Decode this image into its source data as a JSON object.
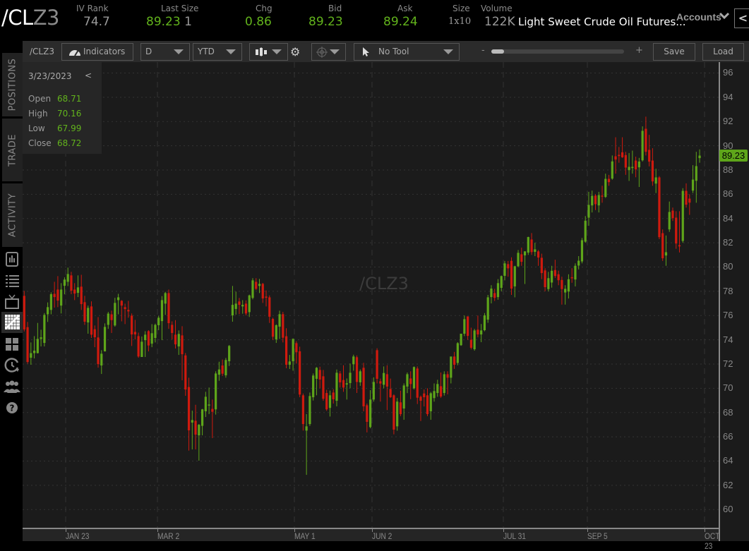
{
  "header": {
    "symbol_prefix": "/CL",
    "symbol_suffix": "Z3",
    "iv_rank": {
      "label": "IV Rank",
      "value": "74.7"
    },
    "last_size": {
      "label": "Last Size",
      "last": "89.23",
      "size": "1"
    },
    "chg": {
      "label": "Chg",
      "value": "0.86"
    },
    "bid": {
      "label": "Bid",
      "value": "89.23"
    },
    "ask": {
      "label": "Ask",
      "value": "89.24"
    },
    "size": {
      "label": "Size",
      "value": "1x10"
    },
    "volume": {
      "label": "Volume",
      "value": "122K"
    },
    "title": "Light Sweet Crude Oil Futures...",
    "accounts": "Accounts",
    "collapse": "<"
  },
  "toolbar": {
    "symbol": "/CLZ3",
    "indicators": "Indicators",
    "aggregation": "D",
    "timeframe": "YTD",
    "drawing_tool": "No Tool",
    "zoom_minus": "-",
    "zoom_plus": "+",
    "zoom_level": 0.1,
    "save": "Save",
    "load": "Load"
  },
  "side_tabs": [
    "POSITIONS",
    "TRADE",
    "ACTIVITY"
  ],
  "side_icons": [
    "chart-book-icon",
    "list-icon",
    "tv-icon",
    "charts-icon",
    "grid-icon",
    "clock-refresh-icon",
    "people-icon",
    "help-icon"
  ],
  "info": {
    "date": "3/23/2023",
    "back": "<",
    "rows": [
      {
        "label": "Open",
        "value": "68.71"
      },
      {
        "label": "High",
        "value": "70.16"
      },
      {
        "label": "Low",
        "value": "67.99"
      },
      {
        "label": "Close",
        "value": "68.72"
      }
    ]
  },
  "watermark": "/CLZ3",
  "last_price_label": "89.23",
  "colors": {
    "up": "#5ea51a",
    "down": "#cf1a0e",
    "background": "#1b1b1b"
  },
  "chart_data": {
    "type": "candlestick",
    "ylim": [
      58.5,
      96.9
    ],
    "yticks": [
      "96",
      "94",
      "92",
      "90",
      "88",
      "86",
      "84",
      "82",
      "80",
      "78",
      "76",
      "74",
      "72",
      "70",
      "68",
      "66",
      "64",
      "62",
      "60"
    ],
    "xticks": [
      "JAN 23",
      "MAR 2",
      "MAY 1",
      "JUN 2",
      "JUL 31",
      "SEP 5",
      "OCT 23"
    ],
    "grid": true,
    "ohlc": [
      [
        77.62,
        78.03,
        74.69,
        74.85
      ],
      [
        75.04,
        75.47,
        72.03,
        72.17
      ],
      [
        72.52,
        73.78,
        71.94,
        72.9
      ],
      [
        72.9,
        74.3,
        72.46,
        73.1
      ],
      [
        72.9,
        75.39,
        72.87,
        74.07
      ],
      [
        74.07,
        74.83,
        73.45,
        74.2
      ],
      [
        73.74,
        76.2,
        73.45,
        76.05
      ],
      [
        76.1,
        77.08,
        75.47,
        76.69
      ],
      [
        76.46,
        77.91,
        76.1,
        77.76
      ],
      [
        77.79,
        78.78,
        76.65,
        77.52
      ],
      [
        78.14,
        79.25,
        76.69,
        77.23
      ],
      [
        76.82,
        78.67,
        76.17,
        78.14
      ],
      [
        78.45,
        79.15,
        77.75,
        78.96
      ],
      [
        78.78,
        79.95,
        78.43,
        79.42
      ],
      [
        79.31,
        79.6,
        77.76,
        78.05
      ],
      [
        78.14,
        78.67,
        77.27,
        77.81
      ],
      [
        77.87,
        79.31,
        77.52,
        78.32
      ],
      [
        78.38,
        79.36,
        76.46,
        76.94
      ],
      [
        77.1,
        77.62,
        75.23,
        75.49
      ],
      [
        75.43,
        76.82,
        74.5,
        76.63
      ],
      [
        76.75,
        77.17,
        74.15,
        74.42
      ],
      [
        74.87,
        75.18,
        73.39,
        74.21
      ],
      [
        74.19,
        75.87,
        71.7,
        71.99
      ],
      [
        71.88,
        73.14,
        71.18,
        72.85
      ],
      [
        73.04,
        75.35,
        73.04,
        75.06
      ],
      [
        75.23,
        76.3,
        74.9,
        76.16
      ],
      [
        76.1,
        76.4,
        74.56,
        75.62
      ],
      [
        75.18,
        77.46,
        75.08,
        77.04
      ],
      [
        77.27,
        77.79,
        76.1,
        77.5
      ],
      [
        77.21,
        77.27,
        75.52,
        76.82
      ],
      [
        76.69,
        76.98,
        75.29,
        76.53
      ],
      [
        76.46,
        77.21,
        75.82,
        76.34
      ],
      [
        75.99,
        76.17,
        73.49,
        74.44
      ],
      [
        74.65,
        75.64,
        74.03,
        74.44
      ],
      [
        74.3,
        74.59,
        72.52,
        72.62
      ],
      [
        72.58,
        74.27,
        72.58,
        73.84
      ],
      [
        73.97,
        74.71,
        72.58,
        74.42
      ],
      [
        74.71,
        74.79,
        73.04,
        73.53
      ],
      [
        73.68,
        75.29,
        73.39,
        74.54
      ],
      [
        74.15,
        75.33,
        73.78,
        75.23
      ],
      [
        75.2,
        75.97,
        74.79,
        75.82
      ],
      [
        75.54,
        77.6,
        73.97,
        77.27
      ],
      [
        76.98,
        77.95,
        76.05,
        77.85
      ],
      [
        77.85,
        78.14,
        74.9,
        75.37
      ],
      [
        75.23,
        75.52,
        74.03,
        74.56
      ],
      [
        74.42,
        75.62,
        73.28,
        73.62
      ],
      [
        73.45,
        74.77,
        72.75,
        74.48
      ],
      [
        74.36,
        75.12,
        70.66,
        72.81
      ],
      [
        72.71,
        72.91,
        69.38,
        69.9
      ],
      [
        70.1,
        70.87,
        64.86,
        66.53
      ],
      [
        67.17,
        68.16,
        64.96,
        67.38
      ],
      [
        67.32,
        68.64,
        64.96,
        66.18
      ],
      [
        66.12,
        67.05,
        64.03,
        66.99
      ],
      [
        66.9,
        68.3,
        66.12,
        68.26
      ],
      [
        68.1,
        69.71,
        67.63,
        69.3
      ],
      [
        68.62,
        70.06,
        67.87,
        68.66
      ],
      [
        68.3,
        69.07,
        65.89,
        68.06
      ],
      [
        68.26,
        71.4,
        67.83,
        71.22
      ],
      [
        71.12,
        72.19,
        70.62,
        71.55
      ],
      [
        71.88,
        72.37,
        71.01,
        71.2
      ],
      [
        71.07,
        72.5,
        70.87,
        72.33
      ],
      [
        72.23,
        73.57,
        71.84,
        73.49
      ],
      [
        76.01,
        78.44,
        75.49,
        76.88
      ],
      [
        76.54,
        77.97,
        76.07,
        76.98
      ],
      [
        77.16,
        77.45,
        76.11,
        76.88
      ],
      [
        76.75,
        77.27,
        76.15,
        76.88
      ],
      [
        76.98,
        77.25,
        76.01,
        76.17
      ],
      [
        76.28,
        77.72,
        75.88,
        77.66
      ],
      [
        77.45,
        79.08,
        77.33,
        78.9
      ],
      [
        78.78,
        79.08,
        78.1,
        78.2
      ],
      [
        78.44,
        79.02,
        77.85,
        78.61
      ],
      [
        78.61,
        78.69,
        77.04,
        77.41
      ],
      [
        77.56,
        78.07,
        76.75,
        77.47
      ],
      [
        77.5,
        77.66,
        75.39,
        75.9
      ],
      [
        75.72,
        75.82,
        73.98,
        74.25
      ],
      [
        74.03,
        75.27,
        73.74,
        75.2
      ],
      [
        75.08,
        76.4,
        74.07,
        76.11
      ],
      [
        76.11,
        76.3,
        73.78,
        74.17
      ],
      [
        74.29,
        74.95,
        71.65,
        71.94
      ],
      [
        71.94,
        72.75,
        71.59,
        72.21
      ],
      [
        72.23,
        74.11,
        71.45,
        74.07
      ],
      [
        73.72,
        73.88,
        72.04,
        72.97
      ],
      [
        73.05,
        73.43,
        69.26,
        69.48
      ],
      [
        69.42,
        69.57,
        66.51,
        67.05
      ],
      [
        66.51,
        67.87,
        62.86,
        66.86
      ],
      [
        67.05,
        69.65,
        66.9,
        69.36
      ],
      [
        69.26,
        71.22,
        68.99,
        71.05
      ],
      [
        70.78,
        71.75,
        69.42,
        71.69
      ],
      [
        71.51,
        71.78,
        70.0,
        70.72
      ],
      [
        70.99,
        71.51,
        68.97,
        69.13
      ],
      [
        69.61,
        69.87,
        68.14,
        68.26
      ],
      [
        68.38,
        69.81,
        67.67,
        69.42
      ],
      [
        69.65,
        69.92,
        68.74,
        69.09
      ],
      [
        68.97,
        71.55,
        68.51,
        71.28
      ],
      [
        71.22,
        71.42,
        70.06,
        70.49
      ],
      [
        70.68,
        71.9,
        69.71,
        70.06
      ],
      [
        70.31,
        70.81,
        69.07,
        70.41
      ],
      [
        70.43,
        72.04,
        70.0,
        71.28
      ],
      [
        71.98,
        72.77,
        71.45,
        72.62
      ],
      [
        72.56,
        72.71,
        69.61,
        70.52
      ],
      [
        70.49,
        71.55,
        70.2,
        71.4
      ],
      [
        71.69,
        72.1,
        68.1,
        68.51
      ],
      [
        68.6,
        68.74,
        66.36,
        67.23
      ],
      [
        66.8,
        69.85,
        66.7,
        69.07
      ],
      [
        69.07,
        70.9,
        68.9,
        70.52
      ],
      [
        73.14,
        73.3,
        70.4,
        70.78
      ],
      [
        70.58,
        70.8,
        68.9,
        70.39
      ],
      [
        70.29,
        71.8,
        70.0,
        71.26
      ],
      [
        71.16,
        71.9,
        68.2,
        70.14
      ],
      [
        69.94,
        70.8,
        69.2,
        69.26
      ],
      [
        69.42,
        69.5,
        66.2,
        66.59
      ],
      [
        66.86,
        69.2,
        66.5,
        68.9
      ],
      [
        68.84,
        69.8,
        67.7,
        67.87
      ],
      [
        68.33,
        70.4,
        67.4,
        70.23
      ],
      [
        70.14,
        71.3,
        69.6,
        71.16
      ],
      [
        70.81,
        71.4,
        69.1,
        70.35
      ],
      [
        70.0,
        71.8,
        69.9,
        71.75
      ],
      [
        71.63,
        71.8,
        68.7,
        69.22
      ],
      [
        69.3,
        69.4,
        67.3,
        68.97
      ],
      [
        69.57,
        69.9,
        68.5,
        69.26
      ],
      [
        69.42,
        70.0,
        67.7,
        67.87
      ],
      [
        68.1,
        69.7,
        67.4,
        69.59
      ],
      [
        69.19,
        70.4,
        68.9,
        69.77
      ],
      [
        69.61,
        70.7,
        69.3,
        70.35
      ],
      [
        70.17,
        71.3,
        69.2,
        69.32
      ],
      [
        69.61,
        71.4,
        69.4,
        71.16
      ],
      [
        71.16,
        71.4,
        69.5,
        70.87
      ],
      [
        70.87,
        72.6,
        70.4,
        72.62
      ],
      [
        72.62,
        73.0,
        71.6,
        71.94
      ],
      [
        72.09,
        73.8,
        71.9,
        73.72
      ],
      [
        73.55,
        74.5,
        73.5,
        74.5
      ],
      [
        74.5,
        76.0,
        74.3,
        75.7
      ],
      [
        75.93,
        75.9,
        74.0,
        74.32
      ],
      [
        74.0,
        75.0,
        73.2,
        73.34
      ],
      [
        73.22,
        74.9,
        73.1,
        74.77
      ],
      [
        74.83,
        76.0,
        74.2,
        74.44
      ],
      [
        74.44,
        75.3,
        73.8,
        74.77
      ],
      [
        74.79,
        76.2,
        74.7,
        76.01
      ],
      [
        75.66,
        77.7,
        75.4,
        77.5
      ],
      [
        77.52,
        78.5,
        77.0,
        78.22
      ],
      [
        77.85,
        78.2,
        77.2,
        77.46
      ],
      [
        77.52,
        79.0,
        77.3,
        78.67
      ],
      [
        78.28,
        79.3,
        78.0,
        79.25
      ],
      [
        79.27,
        80.5,
        78.9,
        80.3
      ],
      [
        80.24,
        80.5,
        79.2,
        79.89
      ],
      [
        80.51,
        80.8,
        77.7,
        78.22
      ],
      [
        78.4,
        80.1,
        77.5,
        80.06
      ],
      [
        80.06,
        81.4,
        80.0,
        81.17
      ],
      [
        81.05,
        81.6,
        80.1,
        80.43
      ],
      [
        80.96,
        81.3,
        78.6,
        81.29
      ],
      [
        81.19,
        82.5,
        81.0,
        82.47
      ],
      [
        82.27,
        82.8,
        81.0,
        81.23
      ],
      [
        81.25,
        82.0,
        80.9,
        81.46
      ],
      [
        81.29,
        81.4,
        80.1,
        80.78
      ],
      [
        80.76,
        81.1,
        79.0,
        79.5
      ],
      [
        79.72,
        79.9,
        78.0,
        78.34
      ],
      [
        78.18,
        79.6,
        78.0,
        79.08
      ],
      [
        78.72,
        80.1,
        78.3,
        79.69
      ],
      [
        79.75,
        80.6,
        79.1,
        79.26
      ],
      [
        79.4,
        79.7,
        78.5,
        78.91
      ],
      [
        78.93,
        79.2,
        76.9,
        78.18
      ],
      [
        77.9,
        78.5,
        76.9,
        78.2
      ],
      [
        77.98,
        79.4,
        77.4,
        78.99
      ],
      [
        79.16,
        79.9,
        78.7,
        79.07
      ],
      [
        78.97,
        80.3,
        78.4,
        80.1
      ],
      [
        80.12,
        80.9,
        79.8,
        80.52
      ],
      [
        80.46,
        82.4,
        80.3,
        82.21
      ],
      [
        82.09,
        84.2,
        82.0,
        83.82
      ],
      [
        84.07,
        86.2,
        83.4,
        85.12
      ],
      [
        85.08,
        86.3,
        84.5,
        85.87
      ],
      [
        85.89,
        86.0,
        84.7,
        85.18
      ],
      [
        85.08,
        86.2,
        84.5,
        85.93
      ],
      [
        85.89,
        86.7,
        85.3,
        85.85
      ],
      [
        85.78,
        87.7,
        85.7,
        87.27
      ],
      [
        87.27,
        87.6,
        86.7,
        87.0
      ],
      [
        87.29,
        89.2,
        87.2,
        88.71
      ],
      [
        89.13,
        90.7,
        87.7,
        88.86
      ],
      [
        89.25,
        89.9,
        88.6,
        89.15
      ],
      [
        89.46,
        90.7,
        89.0,
        89.05
      ],
      [
        89.23,
        89.5,
        87.6,
        88.2
      ],
      [
        87.99,
        89.4,
        87.1,
        88.26
      ],
      [
        88.16,
        89.6,
        87.7,
        88.26
      ],
      [
        88.78,
        89.1,
        87.4,
        88.05
      ],
      [
        88.22,
        89.0,
        86.6,
        88.7
      ],
      [
        88.8,
        91.6,
        88.7,
        91.23
      ],
      [
        91.4,
        92.4,
        89.2,
        89.5
      ],
      [
        89.66,
        90.9,
        88.3,
        88.69
      ],
      [
        88.78,
        89.8,
        86.7,
        87.06
      ],
      [
        86.88,
        88.1,
        86.1,
        87.39
      ],
      [
        87.39,
        87.5,
        82.3,
        82.46
      ],
      [
        82.79,
        83.1,
        80.5,
        80.72
      ],
      [
        80.95,
        82.6,
        80.1,
        81.22
      ],
      [
        83.1,
        85.4,
        82.9,
        84.54
      ],
      [
        84.65,
        84.9,
        83.8,
        84.03
      ],
      [
        84.07,
        84.6,
        81.5,
        81.94
      ],
      [
        81.8,
        84.6,
        81.2,
        81.7
      ],
      [
        82.15,
        86.5,
        82.0,
        86.28
      ],
      [
        86.28,
        86.9,
        84.9,
        85.14
      ],
      [
        85.64,
        86.0,
        84.3,
        85.31
      ],
      [
        86.3,
        88.4,
        86.1,
        87.21
      ],
      [
        87.11,
        89.5,
        85.3,
        88.32
      ],
      [
        88.98,
        89.7,
        88.6,
        89.19
      ]
    ]
  }
}
